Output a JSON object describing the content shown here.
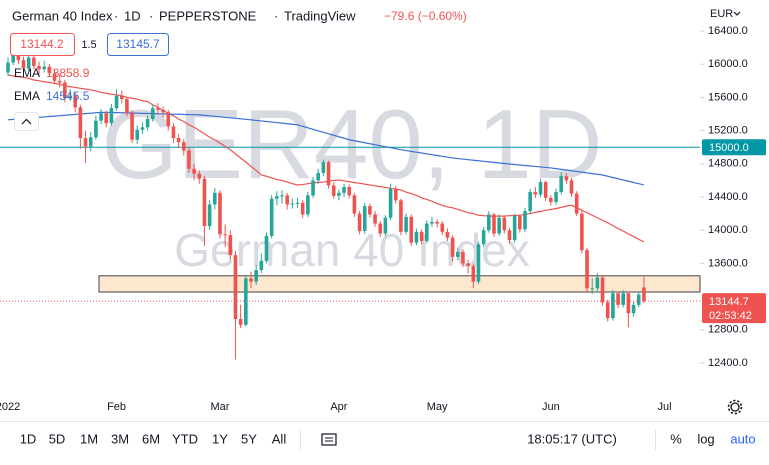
{
  "chart_data": {
    "type": "candlestick",
    "title": "German 40 Index",
    "interval": "1D",
    "source": "PEPPERSTONE",
    "platform": "TradingView",
    "change_label": "−79.6 (−0.60%)",
    "bid": 13144.2,
    "spread": 1.5,
    "ask": 13145.7,
    "currency": "EUR",
    "watermark": "GER40, 1D",
    "watermark_sub": "German 40 Index",
    "countdown": "02:53:42",
    "up_color": "#26a69a",
    "down_color": "#ef5350",
    "grid": false,
    "ylim": [
      12014,
      16774
    ],
    "yticks": [
      {
        "value": 16400,
        "label": "16400.0"
      },
      {
        "value": 16000,
        "label": "16000.0"
      },
      {
        "value": 15600,
        "label": "15600.0"
      },
      {
        "value": 15200,
        "label": "15200.0"
      },
      {
        "value": 14800,
        "label": "14800.0"
      },
      {
        "value": 14400,
        "label": "14400.0"
      },
      {
        "value": 14000,
        "label": "14000.0"
      },
      {
        "value": 13600,
        "label": "13600.0"
      },
      {
        "value": 12800,
        "label": "12800.0"
      },
      {
        "value": 12400,
        "label": "12400.0"
      }
    ],
    "hline": {
      "value": 15000,
      "label": "15000.0",
      "color": "#0097a7"
    },
    "zone": {
      "from": 13255,
      "to": 13450,
      "color": "#fde8cf"
    },
    "categories": [
      "2022",
      null,
      null,
      null,
      null,
      null,
      null,
      null,
      null,
      null,
      null,
      null,
      null,
      null,
      null,
      null,
      null,
      null,
      null,
      null,
      null,
      "Feb",
      null,
      null,
      null,
      null,
      null,
      null,
      null,
      null,
      null,
      null,
      null,
      null,
      null,
      null,
      null,
      null,
      null,
      null,
      null,
      "Mar",
      null,
      null,
      null,
      null,
      null,
      null,
      null,
      null,
      null,
      null,
      null,
      null,
      null,
      null,
      null,
      null,
      null,
      null,
      null,
      null,
      null,
      null,
      "Apr",
      null,
      null,
      null,
      null,
      null,
      null,
      null,
      null,
      null,
      null,
      null,
      null,
      null,
      null,
      null,
      null,
      null,
      null,
      "May",
      null,
      null,
      null,
      null,
      null,
      null,
      null,
      null,
      null,
      null,
      null,
      null,
      null,
      null,
      null,
      null,
      null,
      null,
      null,
      null,
      null,
      "Jun",
      null,
      null,
      null,
      null,
      null,
      null,
      null,
      null,
      null,
      null,
      null,
      null,
      null,
      null,
      null,
      null,
      null,
      null,
      null,
      null,
      null,
      "Jul"
    ],
    "open": [
      15900,
      16020,
      16120,
      16050,
      15950,
      16080,
      15980,
      15940,
      15970,
      15890,
      15800,
      15780,
      15590,
      15620,
      15480,
      15110,
      15010,
      15120,
      15320,
      15410,
      15290,
      15470,
      15620,
      15580,
      15410,
      15090,
      15210,
      15240,
      15340,
      15470,
      15450,
      15420,
      15250,
      15110,
      15060,
      14960,
      14740,
      14680,
      14620,
      14050,
      14310,
      14450,
      13950,
      13940,
      13700,
      12930,
      12860,
      13420,
      13380,
      13520,
      13630,
      13930,
      14380,
      14410,
      14420,
      14310,
      14320,
      14330,
      14190,
      14420,
      14600,
      14690,
      14820,
      14540,
      14415,
      14450,
      14520,
      14420,
      14200,
      13990,
      14290,
      14190,
      14080,
      13960,
      14150,
      14500,
      14360,
      13980,
      14160,
      13850,
      13980,
      13870,
      14080,
      14100,
      14080,
      13980,
      13910,
      13680,
      13740,
      13600,
      13570,
      13380,
      13830,
      14000,
      14190,
      13960,
      14150,
      14000,
      13880,
      14170,
      14010,
      14230,
      14460,
      14430,
      14580,
      14390,
      14340,
      14460,
      14650,
      14600,
      14440,
      14200,
      13760,
      13300,
      13300,
      13430,
      13130,
      12940,
      13240,
      13100,
      13240,
      13000,
      13100,
      13310,
      null,
      null,
      null,
      null
    ],
    "high": [
      16080,
      16190,
      16160,
      16090,
      16130,
      16110,
      16030,
      16040,
      16000,
      15930,
      15880,
      15810,
      15700,
      15660,
      15510,
      15200,
      15180,
      15380,
      15460,
      15440,
      15520,
      15700,
      15680,
      15610,
      15440,
      15260,
      15300,
      15380,
      15510,
      15530,
      15490,
      15450,
      15290,
      15160,
      15100,
      15000,
      14800,
      14720,
      14650,
      14360,
      14510,
      14480,
      14070,
      14000,
      13750,
      13100,
      13460,
      13500,
      13580,
      13720,
      13970,
      14420,
      14470,
      14480,
      14450,
      14380,
      14390,
      14360,
      14460,
      14640,
      14740,
      14850,
      14840,
      14580,
      14490,
      14560,
      14550,
      14450,
      14230,
      14330,
      14320,
      14230,
      14110,
      14180,
      14560,
      14530,
      14380,
      14200,
      14190,
      14020,
      14010,
      14120,
      14160,
      14130,
      14110,
      14020,
      13940,
      13790,
      13770,
      13640,
      13600,
      13860,
      14040,
      14230,
      14210,
      14190,
      14180,
      14030,
      14200,
      14190,
      14270,
      14500,
      14520,
      14620,
      14600,
      14420,
      14500,
      14700,
      14690,
      14630,
      14470,
      14230,
      13790,
      13420,
      13480,
      13460,
      13160,
      13280,
      13260,
      13280,
      13260,
      13140,
      13260,
      13450,
      null,
      null,
      null,
      null
    ],
    "low": [
      15860,
      15990,
      16000,
      15900,
      15920,
      15940,
      15880,
      15900,
      15850,
      15760,
      15720,
      15540,
      15560,
      15420,
      14980,
      14810,
      14950,
      15090,
      15280,
      15240,
      15260,
      15440,
      15530,
      15370,
      15050,
      15040,
      15160,
      15200,
      15310,
      15400,
      15360,
      15200,
      15050,
      14990,
      14900,
      14690,
      14600,
      14560,
      13810,
      14000,
      14250,
      13900,
      13800,
      13640,
      12440,
      12820,
      12840,
      13300,
      13340,
      13480,
      13600,
      13900,
      14300,
      14320,
      14250,
      14260,
      14270,
      14150,
      14160,
      14390,
      14560,
      14650,
      14500,
      14380,
      14360,
      14400,
      14380,
      14160,
      13950,
      13960,
      14150,
      14040,
      13920,
      13930,
      14120,
      14320,
      13940,
      13950,
      13810,
      13820,
      13830,
      13840,
      14040,
      14030,
      13940,
      13870,
      13620,
      13640,
      13560,
      13480,
      13300,
      13350,
      13800,
      13970,
      13920,
      13930,
      13960,
      13840,
      13850,
      13970,
      13980,
      14200,
      14390,
      14400,
      14350,
      14300,
      14310,
      14430,
      14560,
      14400,
      14170,
      13720,
      13260,
      13230,
      13270,
      13090,
      12900,
      12910,
      13060,
      13070,
      12830,
      12960,
      13070,
      13120,
      null,
      null,
      null,
      null
    ],
    "close": [
      16020,
      16120,
      16050,
      15950,
      16080,
      15980,
      15940,
      15970,
      15890,
      15800,
      15780,
      15590,
      15620,
      15480,
      15110,
      15010,
      15120,
      15320,
      15410,
      15290,
      15470,
      15620,
      15580,
      15410,
      15090,
      15210,
      15240,
      15340,
      15470,
      15450,
      15420,
      15250,
      15110,
      15060,
      14960,
      14740,
      14680,
      14620,
      14050,
      14310,
      14450,
      13950,
      13940,
      13700,
      12930,
      12860,
      13420,
      13380,
      13520,
      13630,
      13930,
      14380,
      14410,
      14420,
      14310,
      14320,
      14330,
      14190,
      14420,
      14600,
      14690,
      14820,
      14540,
      14415,
      14450,
      14520,
      14420,
      14200,
      13990,
      14290,
      14190,
      14080,
      13960,
      14150,
      14500,
      14360,
      13980,
      14160,
      13850,
      13980,
      13870,
      14080,
      14100,
      14080,
      13980,
      13910,
      13680,
      13740,
      13600,
      13570,
      13380,
      13830,
      14000,
      14190,
      13960,
      14150,
      14000,
      13880,
      14170,
      14010,
      14230,
      14460,
      14430,
      14580,
      14390,
      14340,
      14460,
      14650,
      14600,
      14440,
      14200,
      13760,
      13300,
      13300,
      13430,
      13130,
      12940,
      13240,
      13100,
      13240,
      13000,
      13100,
      13224.3,
      13144.7,
      null,
      null,
      null,
      null
    ],
    "overlays": [
      {
        "name": "EMA",
        "color": "#ef5350",
        "values": [
          15870,
          15860,
          15850,
          15840,
          15830,
          15810,
          15800,
          15790,
          15780,
          15770,
          15760,
          15740,
          15730,
          15720,
          15710,
          15700,
          15690,
          15680,
          15660,
          15650,
          15640,
          15630,
          15620,
          15600,
          15590,
          15580,
          15560,
          15550,
          15510,
          15480,
          15440,
          15410,
          15380,
          15340,
          15310,
          15270,
          15240,
          15200,
          15160,
          15120,
          15090,
          15050,
          15010,
          14970,
          14920,
          14870,
          14820,
          14770,
          14720,
          14665,
          14650,
          14630,
          14610,
          14600,
          14580,
          14560,
          14545,
          14550,
          14560,
          14570,
          14575,
          14580,
          14590,
          14600,
          14605,
          14595,
          14585,
          14575,
          14565,
          14555,
          14545,
          14535,
          14525,
          14515,
          14505,
          14495,
          14485,
          14460,
          14440,
          14420,
          14390,
          14370,
          14350,
          14320,
          14300,
          14280,
          14270,
          14250,
          14230,
          14210,
          14200,
          14180,
          14175,
          14170,
          14170,
          14170,
          14170,
          14175,
          14178,
          14180,
          14190,
          14200,
          14215,
          14225,
          14240,
          14250,
          14260,
          14275,
          14290,
          14300,
          14270,
          14240,
          14210,
          14180,
          14150,
          14120,
          14090,
          14055,
          14020,
          13990,
          13955,
          13925,
          13890,
          13858.9,
          null,
          null,
          null,
          null
        ]
      },
      {
        "name": "EMA",
        "color": "#3a6fd8",
        "values": [
          15330,
          15335,
          15340,
          15345,
          15350,
          15355,
          15360,
          15365,
          15370,
          15375,
          15380,
          15385,
          15390,
          15395,
          15400,
          15405,
          15410,
          15415,
          15420,
          15420,
          15418,
          15417,
          15415,
          15413,
          15412,
          15410,
          15408,
          15407,
          15405,
          15403,
          15402,
          15400,
          15398,
          15397,
          15395,
          15393,
          15392,
          15390,
          15384,
          15378,
          15372,
          15366,
          15360,
          15354,
          15348,
          15342,
          15336,
          15330,
          15323,
          15317,
          15310,
          15303,
          15297,
          15290,
          15283,
          15277,
          15270,
          15252,
          15234,
          15216,
          15198,
          15180,
          15162,
          15144,
          15126,
          15108,
          15090,
          15078,
          15066,
          15054,
          15042,
          15030,
          15018,
          15006,
          14994,
          14982,
          14970,
          14960,
          14950,
          14940,
          14930,
          14920,
          14910,
          14900,
          14890,
          14880,
          14870,
          14863,
          14857,
          14850,
          14843,
          14837,
          14830,
          14823,
          14817,
          14810,
          14804,
          14798,
          14792,
          14786,
          14780,
          14774,
          14768,
          14762,
          14756,
          14750,
          14742,
          14733,
          14725,
          14716,
          14708,
          14699,
          14691,
          14682,
          14674,
          14665,
          14650,
          14635,
          14620,
          14605,
          14590,
          14575,
          14560,
          14545.5,
          null,
          null,
          null,
          null
        ]
      }
    ]
  },
  "toolbar": {
    "ranges": [
      "1D",
      "5D",
      "1M",
      "3M",
      "6M",
      "YTD",
      "1Y",
      "5Y",
      "All"
    ],
    "clock": "18:05:17 (UTC)",
    "percent": "%",
    "log": "log",
    "auto": "auto"
  }
}
